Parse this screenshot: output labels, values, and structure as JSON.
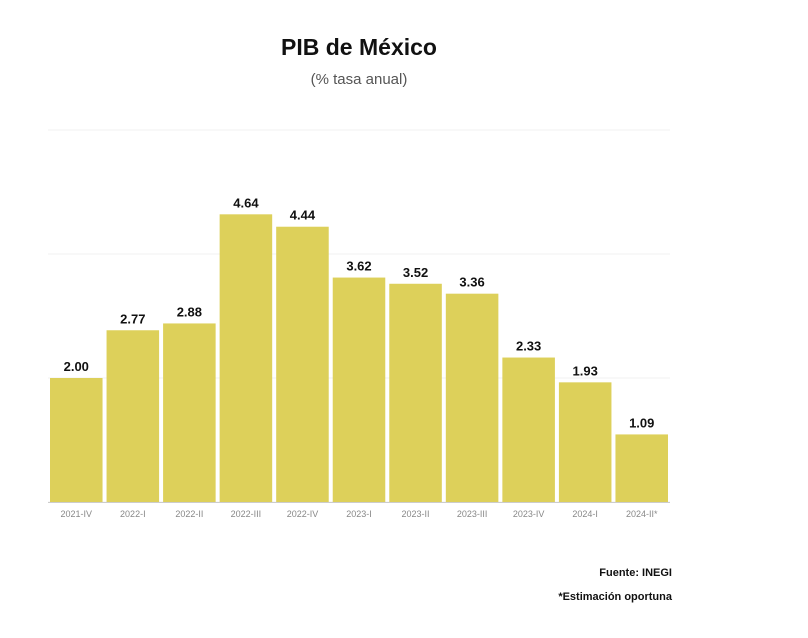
{
  "chart_data": {
    "type": "bar",
    "title": "PIB de México",
    "subtitle": "(% tasa anual)",
    "categories": [
      "2021-IV",
      "2022-I",
      "2022-II",
      "2022-III",
      "2022-IV",
      "2023-I",
      "2023-II",
      "2023-III",
      "2023-IV",
      "2024-I",
      "2024-II*"
    ],
    "values": [
      2.0,
      2.77,
      2.88,
      4.64,
      4.44,
      3.62,
      3.52,
      3.36,
      2.33,
      1.93,
      1.09
    ],
    "value_labels": [
      "2.00",
      "2.77",
      "2.88",
      "4.64",
      "4.44",
      "3.62",
      "3.52",
      "3.36",
      "2.33",
      "1.93",
      "1.09"
    ],
    "ylim": [
      0,
      6
    ],
    "grid": true,
    "bar_color": "#ddd05a"
  },
  "footer": {
    "source": "Fuente: INEGI",
    "note": "*Estimación oportuna"
  }
}
